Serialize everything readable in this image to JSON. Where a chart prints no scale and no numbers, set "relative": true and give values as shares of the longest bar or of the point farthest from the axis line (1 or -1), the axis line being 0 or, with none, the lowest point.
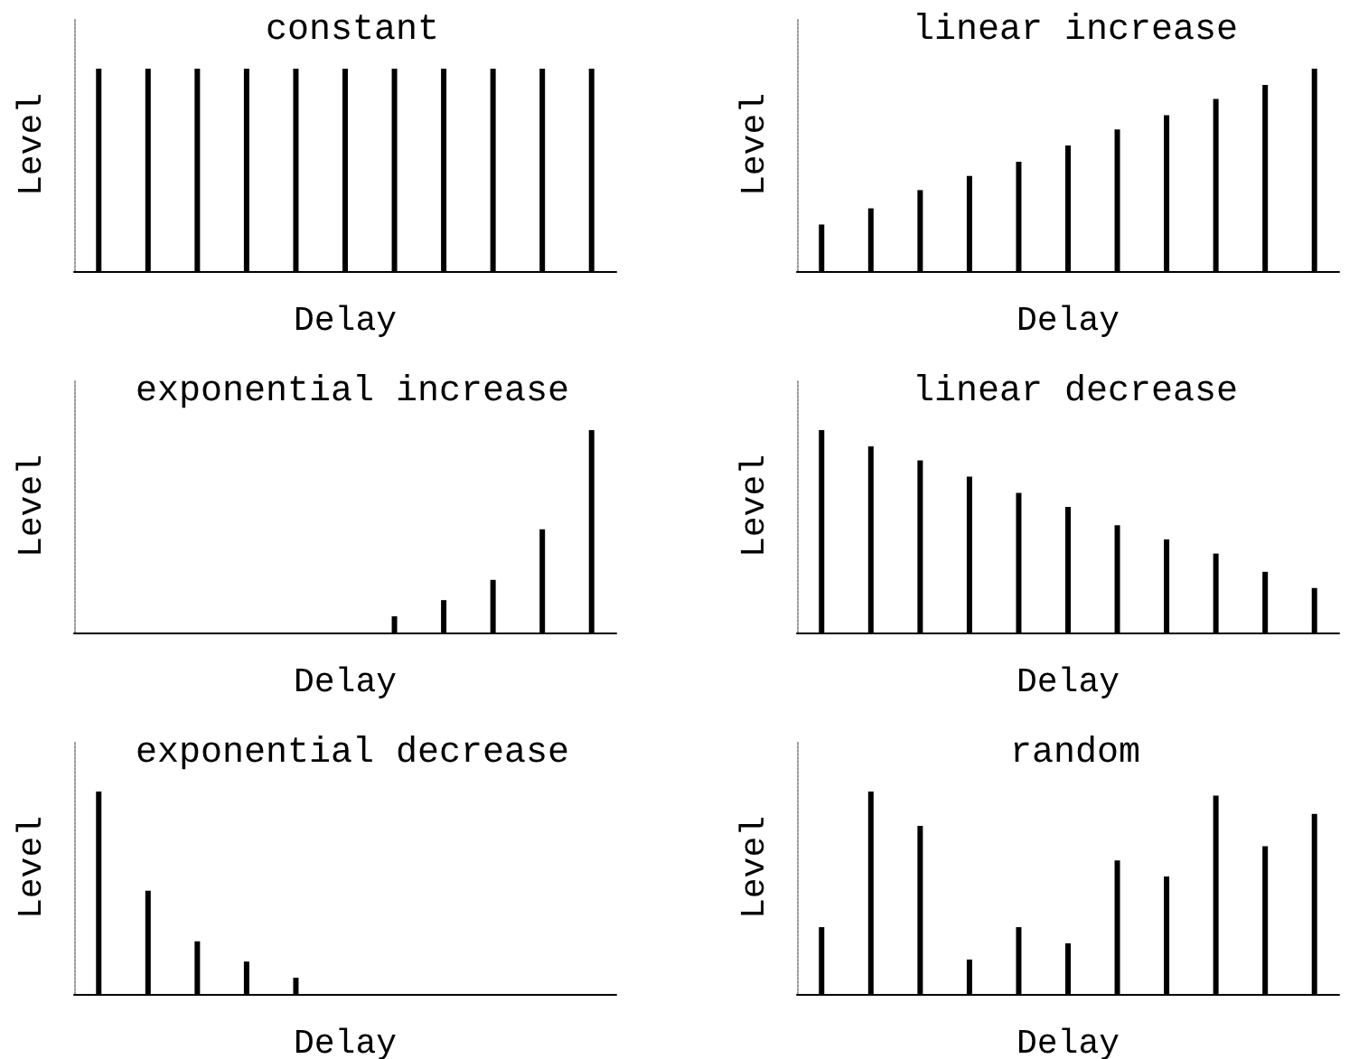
{
  "chart_data": [
    {
      "type": "bar",
      "title": "constant",
      "xlabel": "Delay",
      "ylabel": "Level",
      "relative": true,
      "categories": [
        null,
        null,
        null,
        null,
        null,
        null,
        null,
        null,
        null,
        null,
        null
      ],
      "color": "#000000",
      "values": [
        1,
        1,
        1,
        1,
        1,
        1,
        1,
        1,
        1,
        1,
        1
      ]
    },
    {
      "type": "bar",
      "title": "linear increase",
      "xlabel": "Delay",
      "ylabel": "Level",
      "relative": true,
      "categories": [
        null,
        null,
        null,
        null,
        null,
        null,
        null,
        null,
        null,
        null,
        null
      ],
      "color": "#000000",
      "values": [
        0.23,
        0.31,
        0.4,
        0.47,
        0.54,
        0.62,
        0.7,
        0.77,
        0.85,
        0.92,
        1
      ]
    },
    {
      "type": "bar",
      "title": "exponential increase",
      "xlabel": "Delay",
      "ylabel": "Level",
      "relative": true,
      "categories": [
        null,
        null,
        null,
        null,
        null,
        null,
        null,
        null,
        null,
        null,
        null
      ],
      "color": "#000000",
      "values": [
        0,
        0,
        0,
        0,
        0,
        0,
        0.08,
        0.16,
        0.26,
        0.51,
        1
      ]
    },
    {
      "type": "bar",
      "title": "linear decrease",
      "xlabel": "Delay",
      "ylabel": "Level",
      "relative": true,
      "categories": [
        null,
        null,
        null,
        null,
        null,
        null,
        null,
        null,
        null,
        null,
        null
      ],
      "color": "#000000",
      "values": [
        1,
        0.92,
        0.85,
        0.77,
        0.69,
        0.62,
        0.53,
        0.46,
        0.39,
        0.3,
        0.22
      ]
    },
    {
      "type": "bar",
      "title": "exponential decrease",
      "xlabel": "Delay",
      "ylabel": "Level",
      "relative": true,
      "categories": [
        null,
        null,
        null,
        null,
        null,
        null,
        null,
        null,
        null,
        null,
        null
      ],
      "color": "#000000",
      "values": [
        1,
        0.51,
        0.26,
        0.16,
        0.08,
        0,
        0,
        0,
        0,
        0,
        0
      ]
    },
    {
      "type": "bar",
      "title": "random",
      "xlabel": "Delay",
      "ylabel": "Level",
      "relative": true,
      "categories": [
        null,
        null,
        null,
        null,
        null,
        null,
        null,
        null,
        null,
        null,
        null
      ],
      "color": "#000000",
      "values": [
        0.33,
        1,
        0.83,
        0.17,
        0.33,
        0.25,
        0.66,
        0.58,
        0.98,
        0.73,
        0.89
      ]
    }
  ]
}
